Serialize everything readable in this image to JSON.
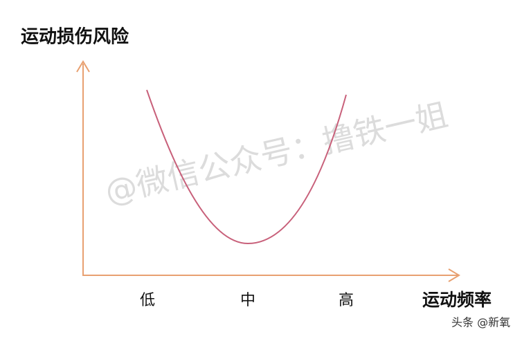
{
  "y_axis_label": "运动损伤风险",
  "x_axis_label": "运动频率",
  "levels": [
    "低",
    "中",
    "高"
  ],
  "watermark": "@微信公众号：撸铁一姐",
  "footer": "头条 @新氧"
}
